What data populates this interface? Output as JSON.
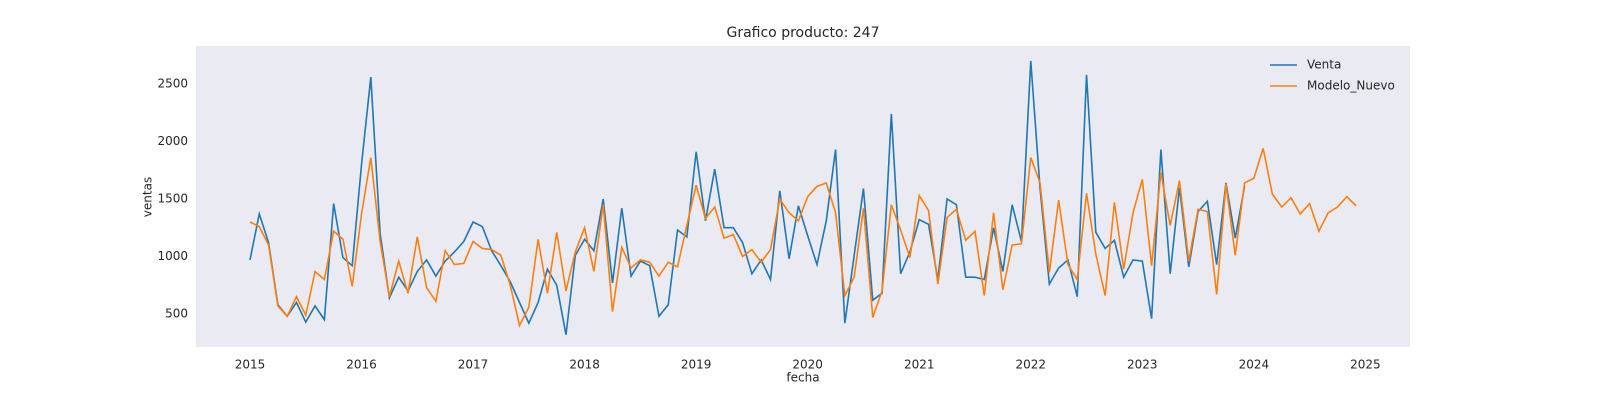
{
  "chart_data": {
    "type": "line",
    "title": "Grafico producto: 247",
    "xlabel": "fecha",
    "ylabel": "ventas",
    "x": [
      "2015-01",
      "2015-02",
      "2015-03",
      "2015-04",
      "2015-05",
      "2015-06",
      "2015-07",
      "2015-08",
      "2015-09",
      "2015-10",
      "2015-11",
      "2015-12",
      "2016-01",
      "2016-02",
      "2016-03",
      "2016-04",
      "2016-05",
      "2016-06",
      "2016-07",
      "2016-08",
      "2016-09",
      "2016-10",
      "2016-11",
      "2016-12",
      "2017-01",
      "2017-02",
      "2017-03",
      "2017-04",
      "2017-05",
      "2017-06",
      "2017-07",
      "2017-08",
      "2017-09",
      "2017-10",
      "2017-11",
      "2017-12",
      "2018-01",
      "2018-02",
      "2018-03",
      "2018-04",
      "2018-05",
      "2018-06",
      "2018-07",
      "2018-08",
      "2018-09",
      "2018-10",
      "2018-11",
      "2018-12",
      "2019-01",
      "2019-02",
      "2019-03",
      "2019-04",
      "2019-05",
      "2019-06",
      "2019-07",
      "2019-08",
      "2019-09",
      "2019-10",
      "2019-11",
      "2019-12",
      "2020-01",
      "2020-02",
      "2020-03",
      "2020-04",
      "2020-05",
      "2020-06",
      "2020-07",
      "2020-08",
      "2020-09",
      "2020-10",
      "2020-11",
      "2020-12",
      "2021-01",
      "2021-02",
      "2021-03",
      "2021-04",
      "2021-05",
      "2021-06",
      "2021-07",
      "2021-08",
      "2021-09",
      "2021-10",
      "2021-11",
      "2021-12",
      "2022-01",
      "2022-02",
      "2022-03",
      "2022-04",
      "2022-05",
      "2022-06",
      "2022-07",
      "2022-08",
      "2022-09",
      "2022-10",
      "2022-11",
      "2022-12",
      "2023-01",
      "2023-02",
      "2023-03",
      "2023-04",
      "2023-05",
      "2023-06",
      "2023-07",
      "2023-08",
      "2023-09",
      "2023-10",
      "2023-11",
      "2023-12",
      "2024-01",
      "2024-02",
      "2024-03",
      "2024-04",
      "2024-05",
      "2024-06",
      "2024-07",
      "2024-08",
      "2024-09",
      "2024-10",
      "2024-11",
      "2024-12"
    ],
    "series": [
      {
        "name": "Venta",
        "color": "#1f77b4",
        "values": [
          970,
          1370,
          1120,
          580,
          480,
          600,
          430,
          570,
          450,
          1460,
          990,
          920,
          1800,
          2560,
          1200,
          640,
          820,
          700,
          870,
          970,
          830,
          960,
          1040,
          1130,
          1300,
          1260,
          1050,
          920,
          780,
          600,
          420,
          600,
          890,
          750,
          320,
          1010,
          1150,
          1050,
          1500,
          770,
          1420,
          830,
          960,
          920,
          480,
          580,
          1230,
          1170,
          1910,
          1310,
          1760,
          1250,
          1250,
          1120,
          850,
          970,
          800,
          1570,
          980,
          1440,
          1180,
          930,
          1310,
          1930,
          420,
          1010,
          1590,
          620,
          680,
          2240,
          850,
          1040,
          1320,
          1280,
          800,
          1500,
          1450,
          820,
          820,
          800,
          1250,
          870,
          1450,
          1130,
          2700,
          1590,
          760,
          900,
          970,
          650,
          2580,
          1210,
          1070,
          1140,
          820,
          970,
          960,
          460,
          1930,
          850,
          1600,
          910,
          1390,
          1480,
          930,
          1640,
          1160,
          1610,
          null,
          null,
          null,
          null,
          null,
          null,
          null,
          null,
          null,
          null,
          null,
          null
        ]
      },
      {
        "name": "Modelo_Nuevo",
        "color": "#ff7f0e",
        "values": [
          1300,
          1260,
          1100,
          570,
          480,
          650,
          490,
          870,
          800,
          1220,
          1150,
          740,
          1370,
          1860,
          1130,
          650,
          960,
          680,
          1170,
          730,
          610,
          1050,
          930,
          940,
          1130,
          1070,
          1060,
          1010,
          750,
          400,
          560,
          1150,
          680,
          1210,
          700,
          1040,
          1250,
          870,
          1450,
          520,
          1080,
          900,
          970,
          950,
          830,
          950,
          910,
          1270,
          1620,
          1330,
          1430,
          1160,
          1190,
          1000,
          1060,
          950,
          1060,
          1500,
          1380,
          1310,
          1520,
          1610,
          1640,
          1380,
          660,
          820,
          1420,
          470,
          700,
          1450,
          1230,
          990,
          1530,
          1400,
          760,
          1340,
          1410,
          1140,
          1220,
          660,
          1380,
          710,
          1100,
          1110,
          1860,
          1640,
          860,
          1490,
          930,
          800,
          1550,
          1020,
          660,
          1470,
          890,
          1380,
          1670,
          920,
          1730,
          1270,
          1660,
          960,
          1410,
          1390,
          670,
          1630,
          1010,
          1640,
          1680,
          1940,
          1540,
          1430,
          1510,
          1370,
          1460,
          1220,
          1380,
          1430,
          1520,
          1440
        ]
      }
    ],
    "xlim": [
      2014.516,
      2025.4
    ],
    "xticks": [
      2015,
      2016,
      2017,
      2018,
      2019,
      2020,
      2021,
      2022,
      2023,
      2024,
      2025
    ],
    "ylim": [
      213,
      2830
    ],
    "yticks": [
      500,
      1000,
      1500,
      2000,
      2500
    ],
    "grid": false,
    "legend": "upper right"
  }
}
